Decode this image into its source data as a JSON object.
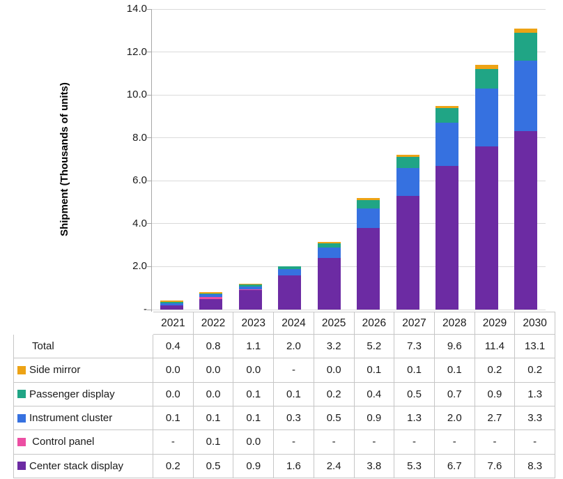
{
  "chart_data": {
    "type": "bar",
    "stacked": true,
    "ylabel": "Shipment (Thousands of units)",
    "ylim": [
      0,
      14
    ],
    "ytick_step": 2,
    "ytick_labels": [
      "-",
      "2.0",
      "4.0",
      "6.0",
      "8.0",
      "10.0",
      "12.0",
      "14.0"
    ],
    "grid": true,
    "legend_position": "table-left",
    "categories": [
      "2021",
      "2022",
      "2023",
      "2024",
      "2025",
      "2026",
      "2027",
      "2028",
      "2029",
      "2030"
    ],
    "series": [
      {
        "name": "Center stack display",
        "color": "#6c2ba3",
        "values": [
          0.2,
          0.5,
          0.9,
          1.6,
          2.4,
          3.8,
          5.3,
          6.7,
          7.6,
          8.3
        ]
      },
      {
        "name": "Control panel",
        "color": "#ec4fa3",
        "values": [
          null,
          0.1,
          0.0,
          null,
          null,
          null,
          null,
          null,
          null,
          null
        ]
      },
      {
        "name": "Instrument cluster",
        "color": "#3671e0",
        "values": [
          0.1,
          0.1,
          0.1,
          0.3,
          0.5,
          0.9,
          1.3,
          2.0,
          2.7,
          3.3
        ]
      },
      {
        "name": "Passenger display",
        "color": "#20a585",
        "values": [
          0.0,
          0.0,
          0.1,
          0.1,
          0.2,
          0.4,
          0.5,
          0.7,
          0.9,
          1.3
        ]
      },
      {
        "name": "Side mirror",
        "color": "#eda315",
        "values": [
          0.0,
          0.0,
          0.0,
          null,
          0.0,
          0.1,
          0.1,
          0.1,
          0.2,
          0.2
        ]
      }
    ],
    "totals": [
      0.4,
      0.8,
      1.1,
      2.0,
      3.2,
      5.2,
      7.3,
      9.6,
      11.4,
      13.1
    ]
  },
  "table": {
    "corner_label": "",
    "header_years": [
      "2021",
      "2022",
      "2023",
      "2024",
      "2025",
      "2026",
      "2027",
      "2028",
      "2029",
      "2030"
    ],
    "rows": [
      {
        "label": "Total",
        "swatch": null,
        "values": [
          "0.4",
          "0.8",
          "1.1",
          "2.0",
          "3.2",
          "5.2",
          "7.3",
          "9.6",
          "11.4",
          "13.1"
        ]
      },
      {
        "label": "Side mirror",
        "swatch": "#eda315",
        "values": [
          "0.0",
          "0.0",
          "0.0",
          "-",
          "0.0",
          "0.1",
          "0.1",
          "0.1",
          "0.2",
          "0.2"
        ]
      },
      {
        "label": "Passenger display",
        "swatch": "#20a585",
        "values": [
          "0.0",
          "0.0",
          "0.1",
          "0.1",
          "0.2",
          "0.4",
          "0.5",
          "0.7",
          "0.9",
          "1.3"
        ]
      },
      {
        "label": "Instrument cluster",
        "swatch": "#3671e0",
        "values": [
          "0.1",
          "0.1",
          "0.1",
          "0.3",
          "0.5",
          "0.9",
          "1.3",
          "2.0",
          "2.7",
          "3.3"
        ]
      },
      {
        "label": " Control panel",
        "swatch": "#ec4fa3",
        "values": [
          "-",
          "0.1",
          "0.0",
          "-",
          "-",
          "-",
          "-",
          "-",
          "-",
          "-"
        ]
      },
      {
        "label": "Center stack display",
        "swatch": "#6c2ba3",
        "values": [
          "0.2",
          "0.5",
          "0.9",
          "1.6",
          "2.4",
          "3.8",
          "5.3",
          "6.7",
          "7.6",
          "8.3"
        ]
      }
    ]
  },
  "colors": {
    "gridline": "#dadada",
    "axis": "#a6a6a6",
    "table_border": "#c6c6c6",
    "text": "#1a1a1a"
  }
}
